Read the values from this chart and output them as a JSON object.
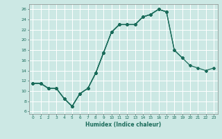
{
  "xlabel": "Humidex (Indice chaleur)",
  "background_color": "#cce8e4",
  "grid_color": "#ffffff",
  "line_color": "#1a6b5a",
  "xlim": [
    -0.5,
    23.5
  ],
  "ylim": [
    5.5,
    27
  ],
  "yticks": [
    6,
    8,
    10,
    12,
    14,
    16,
    18,
    20,
    22,
    24,
    26
  ],
  "xticks": [
    0,
    1,
    2,
    3,
    4,
    5,
    6,
    7,
    8,
    9,
    10,
    11,
    12,
    13,
    14,
    15,
    16,
    17,
    18,
    19,
    20,
    21,
    22,
    23
  ],
  "series": [
    {
      "x": [
        0,
        1,
        2,
        3,
        4,
        5,
        6,
        7,
        8,
        9,
        10,
        11,
        12,
        13,
        14,
        15,
        16,
        17
      ],
      "y": [
        11.5,
        11.5,
        10.5,
        10.5,
        8.5,
        7.0,
        9.5,
        10.5,
        13.5,
        17.5,
        21.5,
        23.0,
        23.0,
        23.0,
        24.5,
        25.0,
        26.0,
        25.5
      ]
    },
    {
      "x": [
        0,
        1,
        2,
        3,
        4,
        5,
        6,
        7,
        8,
        9,
        10,
        11,
        12,
        13,
        14,
        15,
        16,
        17,
        18,
        19
      ],
      "y": [
        11.5,
        11.5,
        10.5,
        10.5,
        8.5,
        7.0,
        9.5,
        10.5,
        13.5,
        17.5,
        21.5,
        23.0,
        23.0,
        23.0,
        24.5,
        25.0,
        26.0,
        25.5,
        18.0,
        16.5
      ]
    },
    {
      "x": [
        0,
        1,
        2,
        3,
        4,
        5,
        6,
        7,
        8,
        9,
        10,
        11,
        12,
        13,
        14,
        15,
        16,
        17,
        18,
        19,
        20,
        21,
        22,
        23
      ],
      "y": [
        11.5,
        11.5,
        10.5,
        10.5,
        8.5,
        7.0,
        9.5,
        10.5,
        13.5,
        17.5,
        21.5,
        23.0,
        23.0,
        23.0,
        24.5,
        25.0,
        26.0,
        25.5,
        18.0,
        16.5,
        15.0,
        14.5,
        14.0,
        14.5
      ]
    }
  ]
}
